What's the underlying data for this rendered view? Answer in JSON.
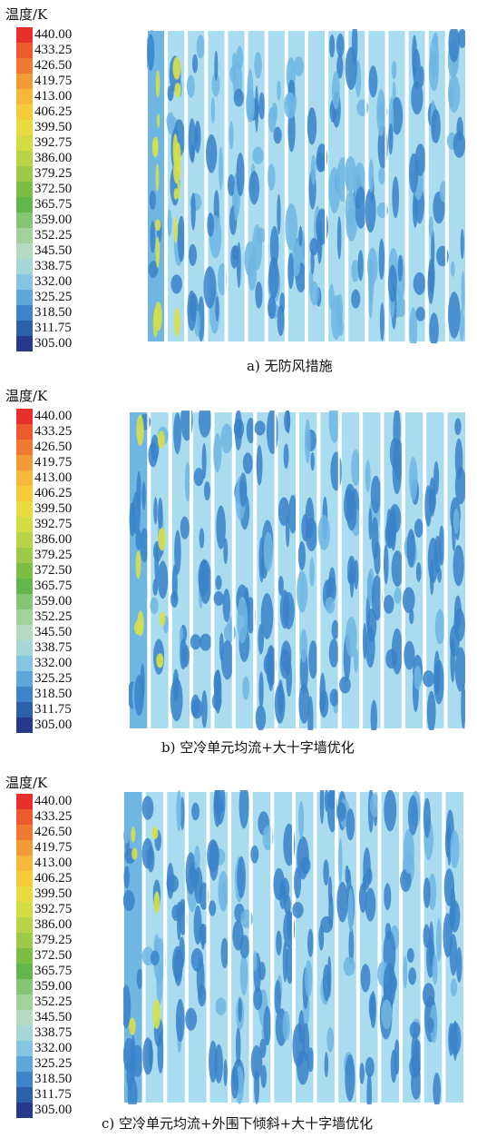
{
  "legend": {
    "title": "温度/K",
    "ticks": [
      "440.00",
      "433.25",
      "426.50",
      "419.75",
      "413.00",
      "406.25",
      "399.50",
      "392.75",
      "386.00",
      "379.25",
      "372.50",
      "365.75",
      "359.00",
      "352.25",
      "345.50",
      "338.75",
      "332.00",
      "325.25",
      "318.50",
      "311.75",
      "305.00"
    ],
    "colors": [
      "#e8302a",
      "#ed5a2f",
      "#f07a33",
      "#f39a38",
      "#f7b73b",
      "#f4cc3a",
      "#e9db3f",
      "#d3dc43",
      "#b8d348",
      "#9dc948",
      "#7bbd45",
      "#63b54c",
      "#86c476",
      "#a2d19c",
      "#b3dbc4",
      "#a6d6d8",
      "#84c6e2",
      "#5ea7d8",
      "#3f84c6",
      "#2e5fa9",
      "#26398a"
    ]
  },
  "panels": [
    {
      "id": "a",
      "caption": "a) 无防风措施",
      "scenario": "no-windbreak"
    },
    {
      "id": "b",
      "caption": "b) 空冷单元均流+大十字墙优化",
      "scenario": "uniform-flow-cross-wall"
    },
    {
      "id": "c",
      "caption": "c) 空冷单元均流+外围下倾斜+大十字墙优化",
      "scenario": "uniform-flow-tilt-cross-wall"
    }
  ],
  "colors": {
    "field_dark": "#3a82c9",
    "field_mid": "#6fb6e3",
    "field_light": "#a9dcef",
    "hot": "#d6e04a",
    "gap": "#ffffff"
  }
}
